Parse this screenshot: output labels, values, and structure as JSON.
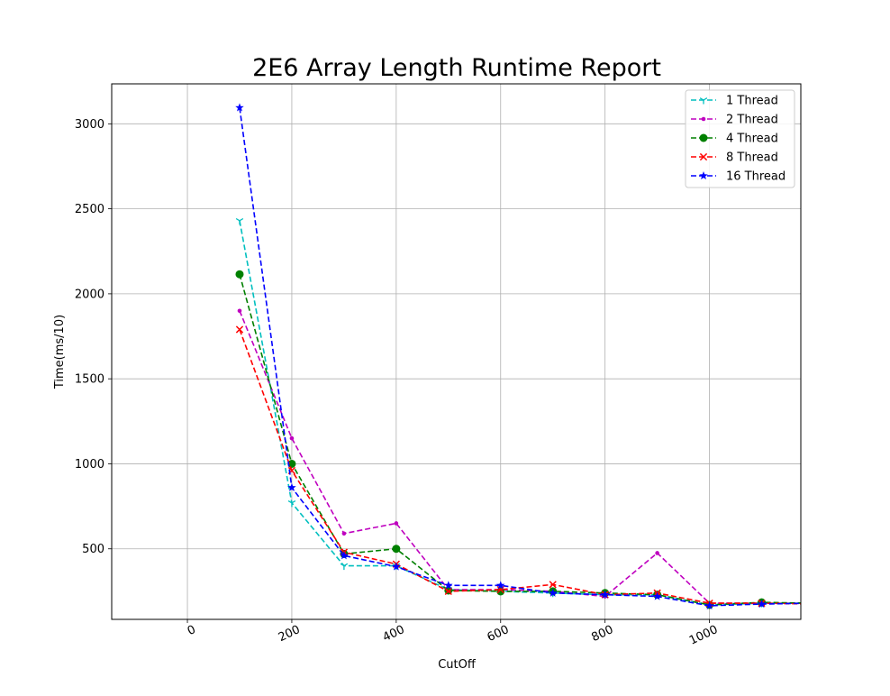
{
  "chart_data": {
    "type": "line",
    "title": "2E6 Array Length Runtime Report",
    "xlabel": "CutOff",
    "ylabel": "Time(ms/10)",
    "xlim": [
      -145,
      1175
    ],
    "ylim": [
      85,
      3235
    ],
    "xticks": [
      0,
      200,
      400,
      600,
      800,
      1000
    ],
    "yticks": [
      500,
      1000,
      1500,
      2000,
      2500,
      3000
    ],
    "grid": true,
    "legend_position": "top-right",
    "x": [
      100,
      200,
      300,
      400,
      500,
      600,
      700,
      800,
      900,
      1000,
      1100,
      1200
    ],
    "series": [
      {
        "name": "1 Thread",
        "color": "#00bfbf",
        "marker": "tri_down",
        "values": [
          2430,
          770,
          400,
          400,
          260,
          250,
          240,
          230,
          230,
          170,
          180,
          180
        ]
      },
      {
        "name": "2 Thread",
        "color": "#bf00bf",
        "marker": "point",
        "values": [
          1900,
          1150,
          590,
          650,
          260,
          260,
          250,
          220,
          475,
          180,
          180,
          180
        ]
      },
      {
        "name": "4 Thread",
        "color": "#008000",
        "marker": "circle",
        "values": [
          2115,
          1000,
          470,
          500,
          255,
          250,
          250,
          240,
          230,
          170,
          185,
          180
        ]
      },
      {
        "name": "8 Thread",
        "color": "#ff0000",
        "marker": "x",
        "values": [
          1790,
          960,
          480,
          410,
          250,
          260,
          290,
          230,
          240,
          180,
          180,
          175
        ]
      },
      {
        "name": "16 Thread",
        "color": "#0000ff",
        "marker": "star",
        "values": [
          3095,
          860,
          460,
          395,
          285,
          285,
          240,
          230,
          220,
          165,
          175,
          180
        ]
      }
    ]
  }
}
